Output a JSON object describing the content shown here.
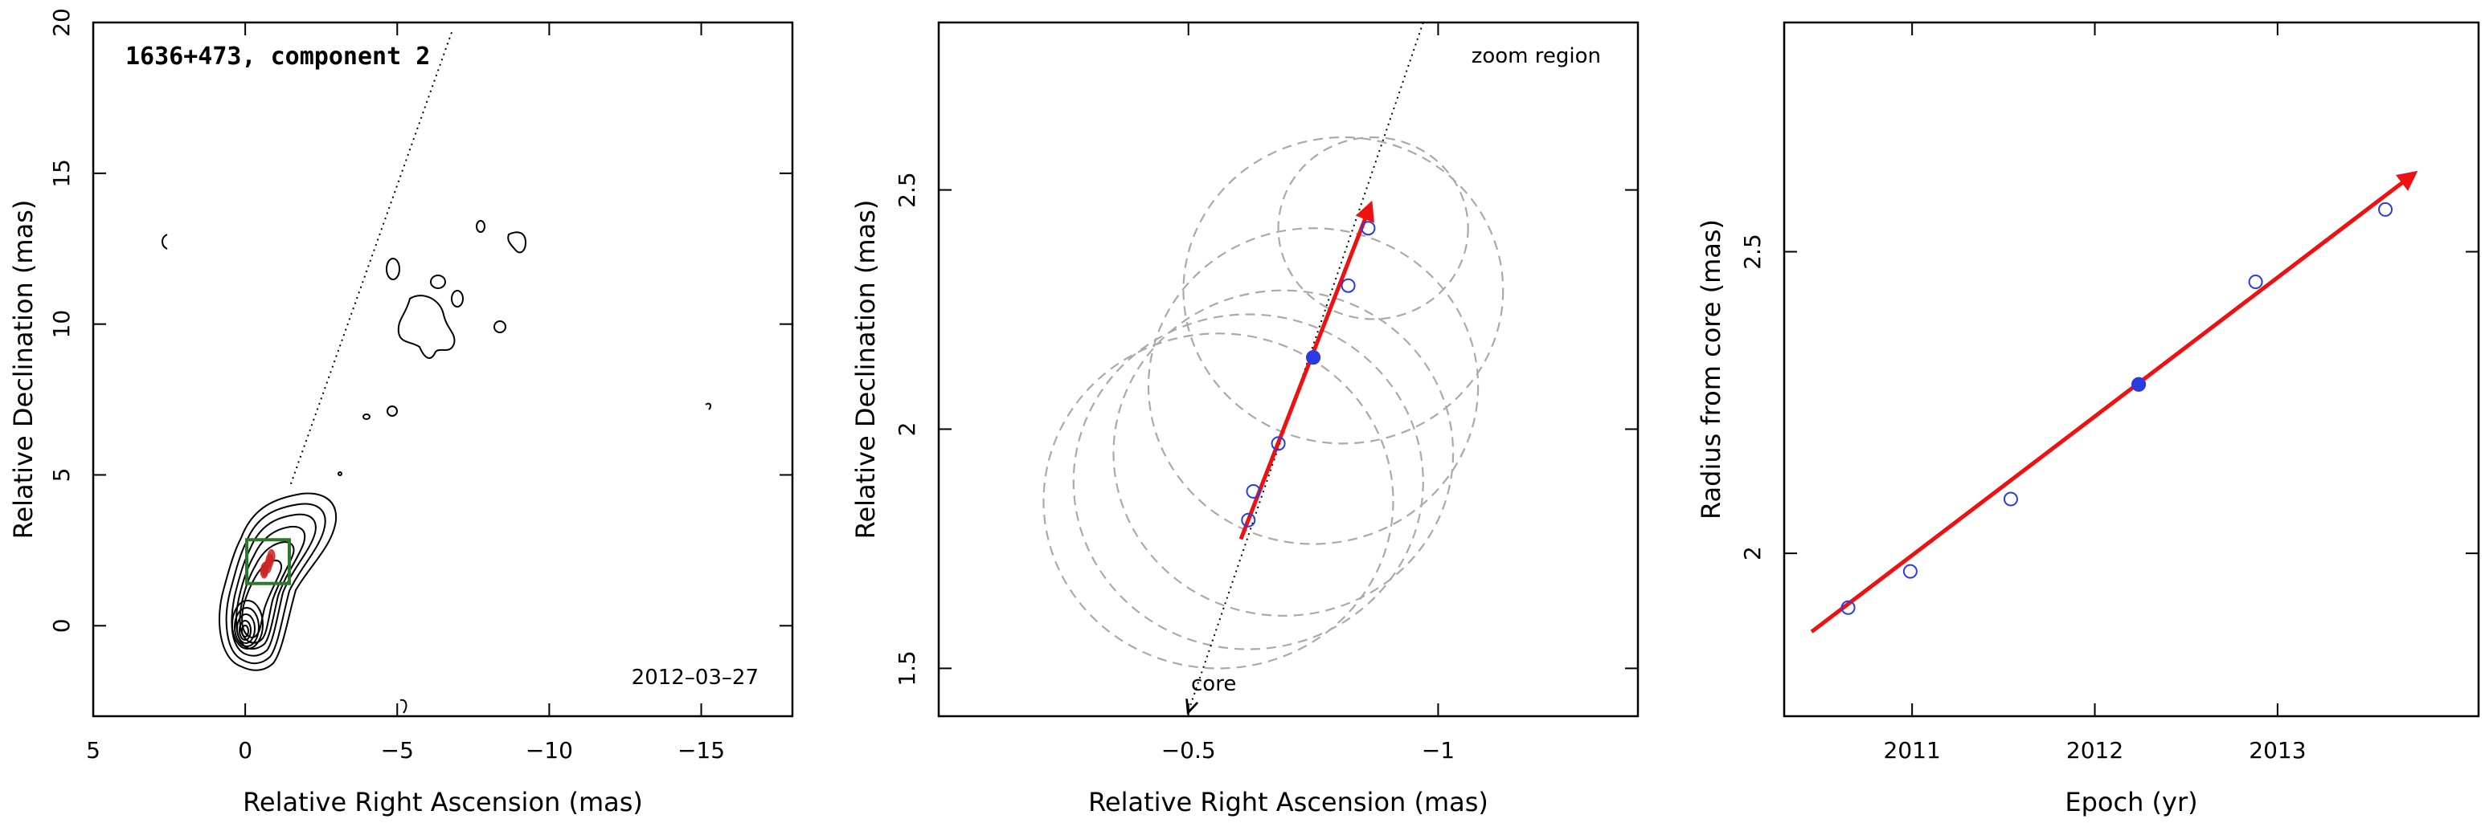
{
  "chart_data": [
    {
      "type": "scatter",
      "title": "1636+473, component 2",
      "date_label": "2012–03–27",
      "xlabel": "Relative Right Ascension (mas)",
      "ylabel": "Relative Declination (mas)",
      "xlim": [
        5,
        -18
      ],
      "ylim": [
        -3,
        20
      ],
      "xticks": [
        5,
        0,
        -5,
        -10,
        -15
      ],
      "yticks": [
        0,
        5,
        10,
        15,
        20
      ],
      "xtick_labels": [
        "5",
        "0",
        "−5",
        "−10",
        "−15"
      ],
      "ytick_labels": [
        "0",
        "5",
        "10",
        "15",
        "20"
      ],
      "jet_direction_line": {
        "x": [
          -1.5,
          -6.8
        ],
        "y": [
          4.7,
          19.7
        ]
      },
      "zoom_box": {
        "x": [
          -0.05,
          -1.45
        ],
        "y": [
          1.4,
          2.85
        ]
      },
      "component_positions": {
        "x": [
          -0.62,
          -0.64,
          -0.74,
          -0.8,
          -0.86
        ],
        "y": [
          1.8,
          1.87,
          1.97,
          2.15,
          2.3
        ]
      },
      "colors": {
        "contours": "#000000",
        "zoom_box": "#2a7a2a",
        "components": "#cc2222",
        "jet_line": "#000000"
      }
    },
    {
      "type": "scatter",
      "annotation": "zoom region",
      "core_label": "core",
      "xlabel": "Relative Right Ascension (mas)",
      "ylabel": "Relative Declination (mas)",
      "xlim": [
        0,
        -1.4
      ],
      "ylim": [
        1.4,
        2.85
      ],
      "xticks": [
        -0.5,
        -1
      ],
      "yticks": [
        1.5,
        2,
        2.5
      ],
      "xtick_labels": [
        "−0.5",
        "−1"
      ],
      "ytick_labels": [
        "1.5",
        "2",
        "2.5"
      ],
      "points": {
        "x": [
          -0.62,
          -0.63,
          -0.68,
          -0.75,
          -0.82,
          -0.86
        ],
        "y": [
          1.81,
          1.87,
          1.97,
          2.15,
          2.3,
          2.42
        ]
      },
      "highlighted_point": {
        "x": -0.75,
        "y": 2.15
      },
      "beam_circles": [
        {
          "x": -0.56,
          "y": 1.85,
          "r": 0.35
        },
        {
          "x": -0.62,
          "y": 1.89,
          "r": 0.35
        },
        {
          "x": -0.69,
          "y": 1.95,
          "r": 0.34
        },
        {
          "x": -0.75,
          "y": 2.09,
          "r": 0.33
        },
        {
          "x": -0.81,
          "y": 2.29,
          "r": 0.32
        },
        {
          "x": -0.87,
          "y": 2.42,
          "r": 0.19
        }
      ],
      "fit_arrow": {
        "x": [
          -0.605,
          -0.865
        ],
        "y": [
          1.77,
          2.47
        ]
      },
      "core_line": {
        "x": [
          -0.5,
          -0.97
        ],
        "y": [
          1.41,
          2.85
        ]
      },
      "colors": {
        "points": "#2b3be0",
        "arrow": "#ee1111",
        "circles": "#aaaaaa"
      }
    },
    {
      "type": "scatter",
      "xlabel": "Epoch (yr)",
      "ylabel": "Radius from core (mas)",
      "xlim": [
        2010.3,
        2014.1
      ],
      "ylim": [
        1.73,
        2.88
      ],
      "xticks": [
        2011,
        2012,
        2013
      ],
      "yticks": [
        2,
        2.5
      ],
      "xtick_labels": [
        "2011",
        "2012",
        "2013"
      ],
      "ytick_labels": [
        "2",
        "2.5"
      ],
      "points": {
        "x": [
          2010.65,
          2010.99,
          2011.54,
          2012.24,
          2012.88,
          2013.59
        ],
        "y": [
          1.91,
          1.97,
          2.09,
          2.28,
          2.45,
          2.57
        ]
      },
      "highlighted_point": {
        "x": 2012.24,
        "y": 2.28
      },
      "fit_arrow": {
        "x": [
          2010.45,
          2013.75
        ],
        "y": [
          1.87,
          2.63
        ]
      },
      "colors": {
        "points": "#2b3be0",
        "arrow": "#ee1111"
      }
    }
  ]
}
